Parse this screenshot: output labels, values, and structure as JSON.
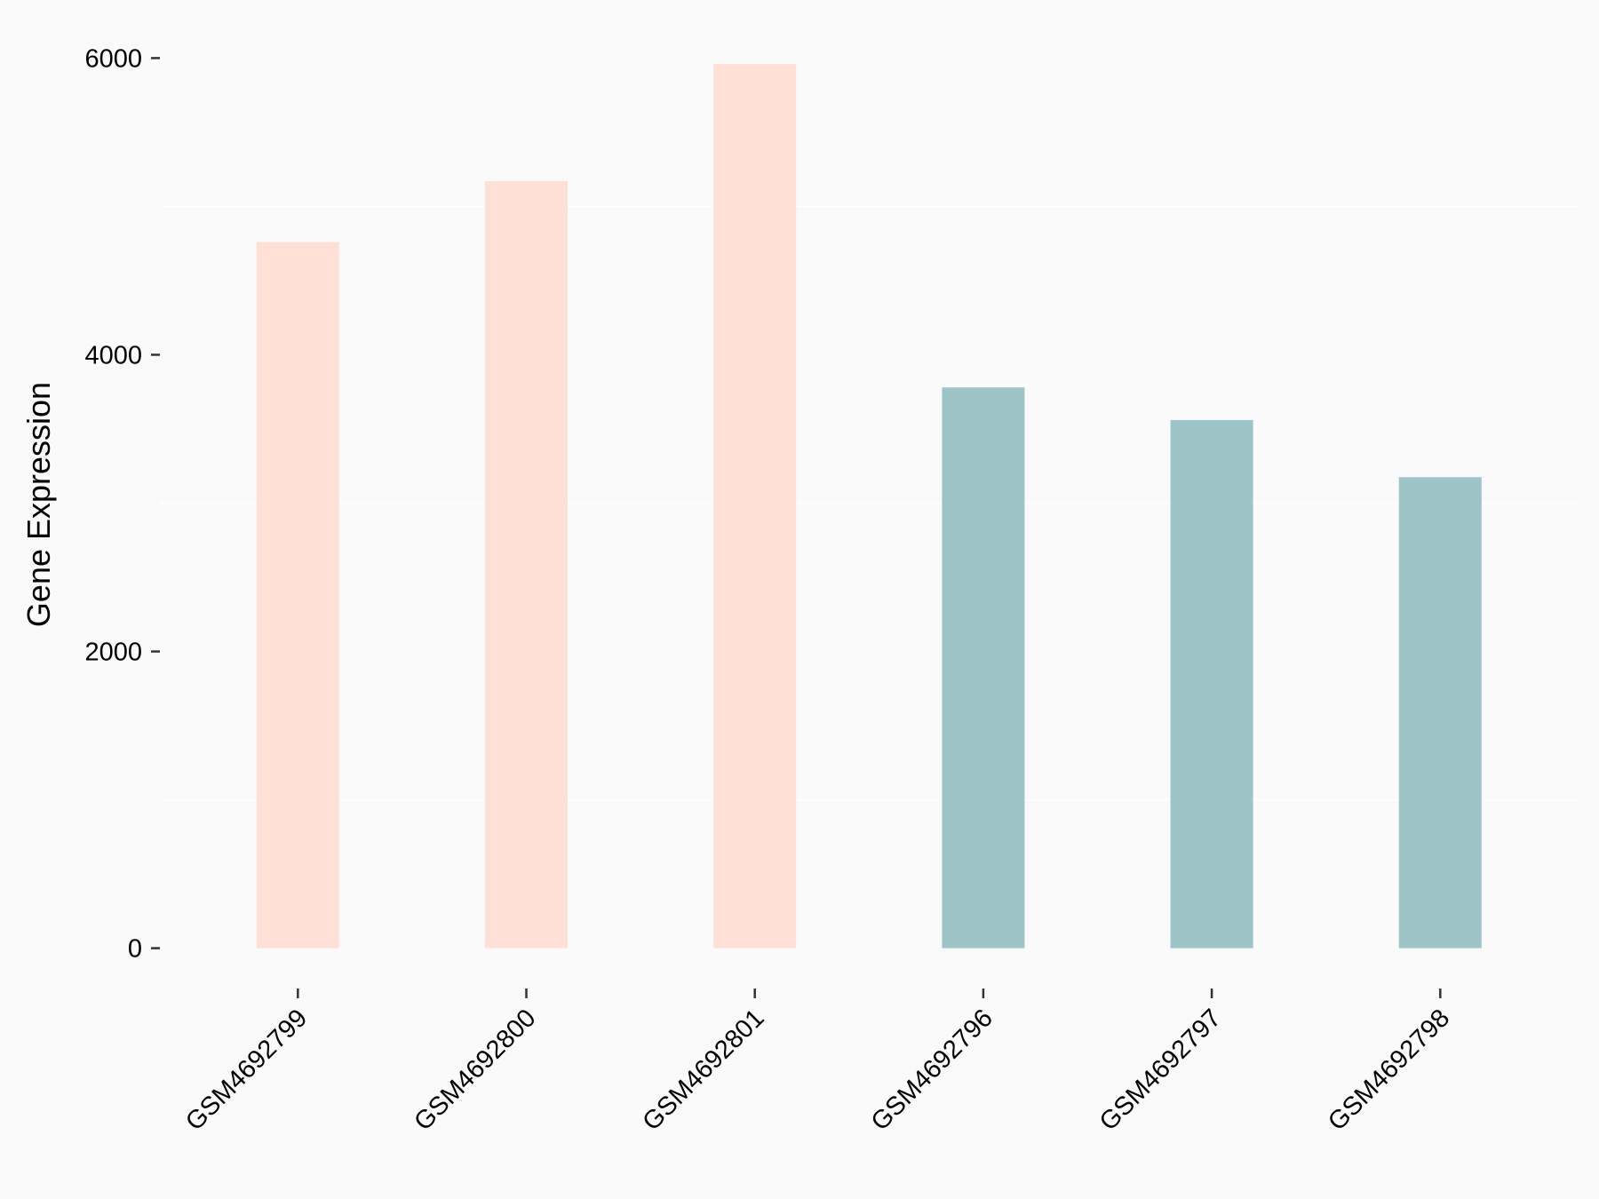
{
  "chart_data": {
    "type": "bar",
    "title": "",
    "xlabel": "",
    "ylabel": "Gene Expression",
    "ylim": [
      0,
      6000
    ],
    "yticks": [
      0,
      2000,
      4000,
      6000
    ],
    "ytick_labels": [
      "0",
      "2000",
      "4000",
      "6000"
    ],
    "minor_gridlines": [
      1000,
      3000,
      5000
    ],
    "grid": true,
    "legend": "none",
    "background": "#fafafa",
    "categories": [
      "GSM4692799",
      "GSM4692800",
      "GSM4692801",
      "GSM4692796",
      "GSM4692797",
      "GSM4692798"
    ],
    "values": [
      4760,
      5170,
      5960,
      3780,
      3560,
      3175
    ],
    "colors": [
      "#ffe0d6",
      "#ffe0d6",
      "#ffe0d6",
      "#9dc4c7",
      "#9dc4c7",
      "#9dc4c7"
    ]
  }
}
